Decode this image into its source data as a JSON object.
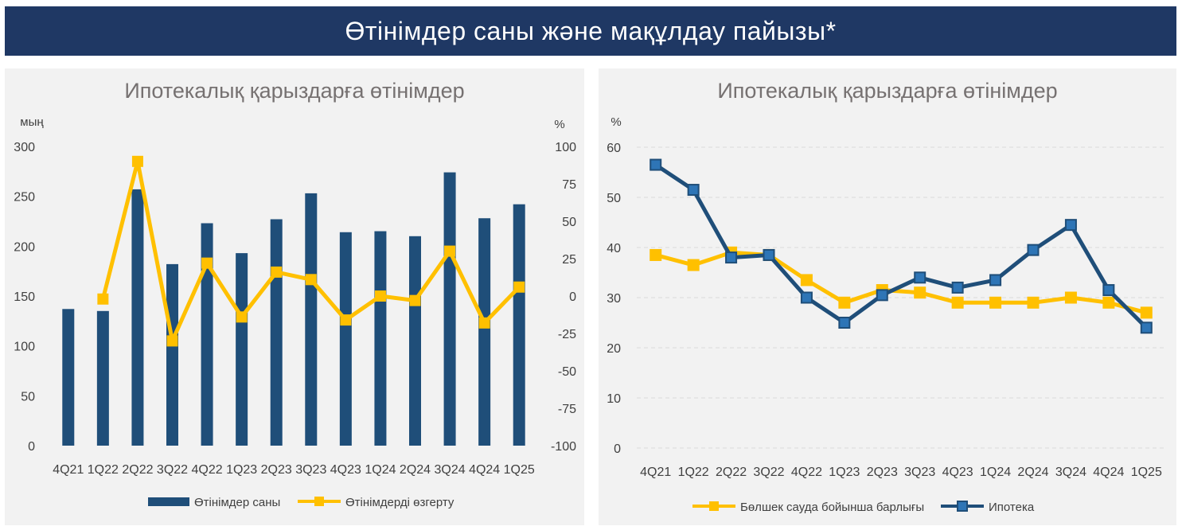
{
  "banner": {
    "title": "Өтінімдер саны және мақұлдау пайызы*"
  },
  "colors": {
    "navy": "#1f4e79",
    "gold": "#ffc000",
    "grid": "#d9d9d9"
  },
  "chart_data": [
    {
      "type": "bar",
      "title": "Ипотекалық қарыздарға өтінімдер",
      "y_unit_left": "мың",
      "y_unit_right": "%",
      "categories": [
        "4Q21",
        "1Q22",
        "2Q22",
        "3Q22",
        "4Q22",
        "1Q23",
        "2Q23",
        "3Q23",
        "4Q23",
        "1Q24",
        "2Q24",
        "3Q24",
        "4Q24",
        "1Q25"
      ],
      "ylim_left": [
        0,
        300
      ],
      "ylim_right": [
        -100,
        100
      ],
      "yticks_left": [
        "0",
        "50",
        "100",
        "150",
        "200",
        "250",
        "300"
      ],
      "yticks_right": [
        "-100",
        "-75",
        "-50",
        "-25",
        "0",
        "25",
        "50",
        "75",
        "100"
      ],
      "series": [
        {
          "name": "Өтінімдер саны",
          "type": "bar",
          "axis": "left",
          "color": "#1f4e79",
          "values": [
            137,
            135,
            257,
            182,
            223,
            193,
            227,
            253,
            214,
            215,
            210,
            274,
            228,
            242
          ]
        },
        {
          "name": "Өтінімдерді өзгерту",
          "type": "line",
          "axis": "right",
          "color": "#ffc000",
          "values": [
            null,
            -2,
            90,
            -30,
            22,
            -14,
            16,
            11,
            -16,
            0,
            -3,
            30,
            -18,
            6
          ]
        }
      ],
      "grid": false,
      "legend": "bottom"
    },
    {
      "type": "line",
      "title": "Ипотекалық қарыздарға өтінімдер",
      "y_unit": "%",
      "categories": [
        "4Q21",
        "1Q22",
        "2Q22",
        "3Q22",
        "4Q22",
        "1Q23",
        "2Q23",
        "3Q23",
        "4Q23",
        "1Q24",
        "2Q24",
        "3Q24",
        "4Q24",
        "1Q25"
      ],
      "ylim": [
        0,
        60
      ],
      "yticks": [
        "0",
        "10",
        "20",
        "30",
        "40",
        "50",
        "60"
      ],
      "series": [
        {
          "name": "Бөлшек сауда бойынша барлығы",
          "color": "#ffc000",
          "values": [
            38.5,
            36.5,
            39,
            38.5,
            33.5,
            29,
            31.5,
            31,
            29,
            29,
            29,
            30,
            29,
            27
          ]
        },
        {
          "name": "Ипотека",
          "color": "#1f4e79",
          "values": [
            56.5,
            51.5,
            38,
            38.5,
            30,
            25,
            30.5,
            34,
            32,
            33.5,
            39.5,
            44.5,
            31.5,
            24
          ]
        }
      ],
      "grid": true,
      "legend": "bottom"
    }
  ]
}
